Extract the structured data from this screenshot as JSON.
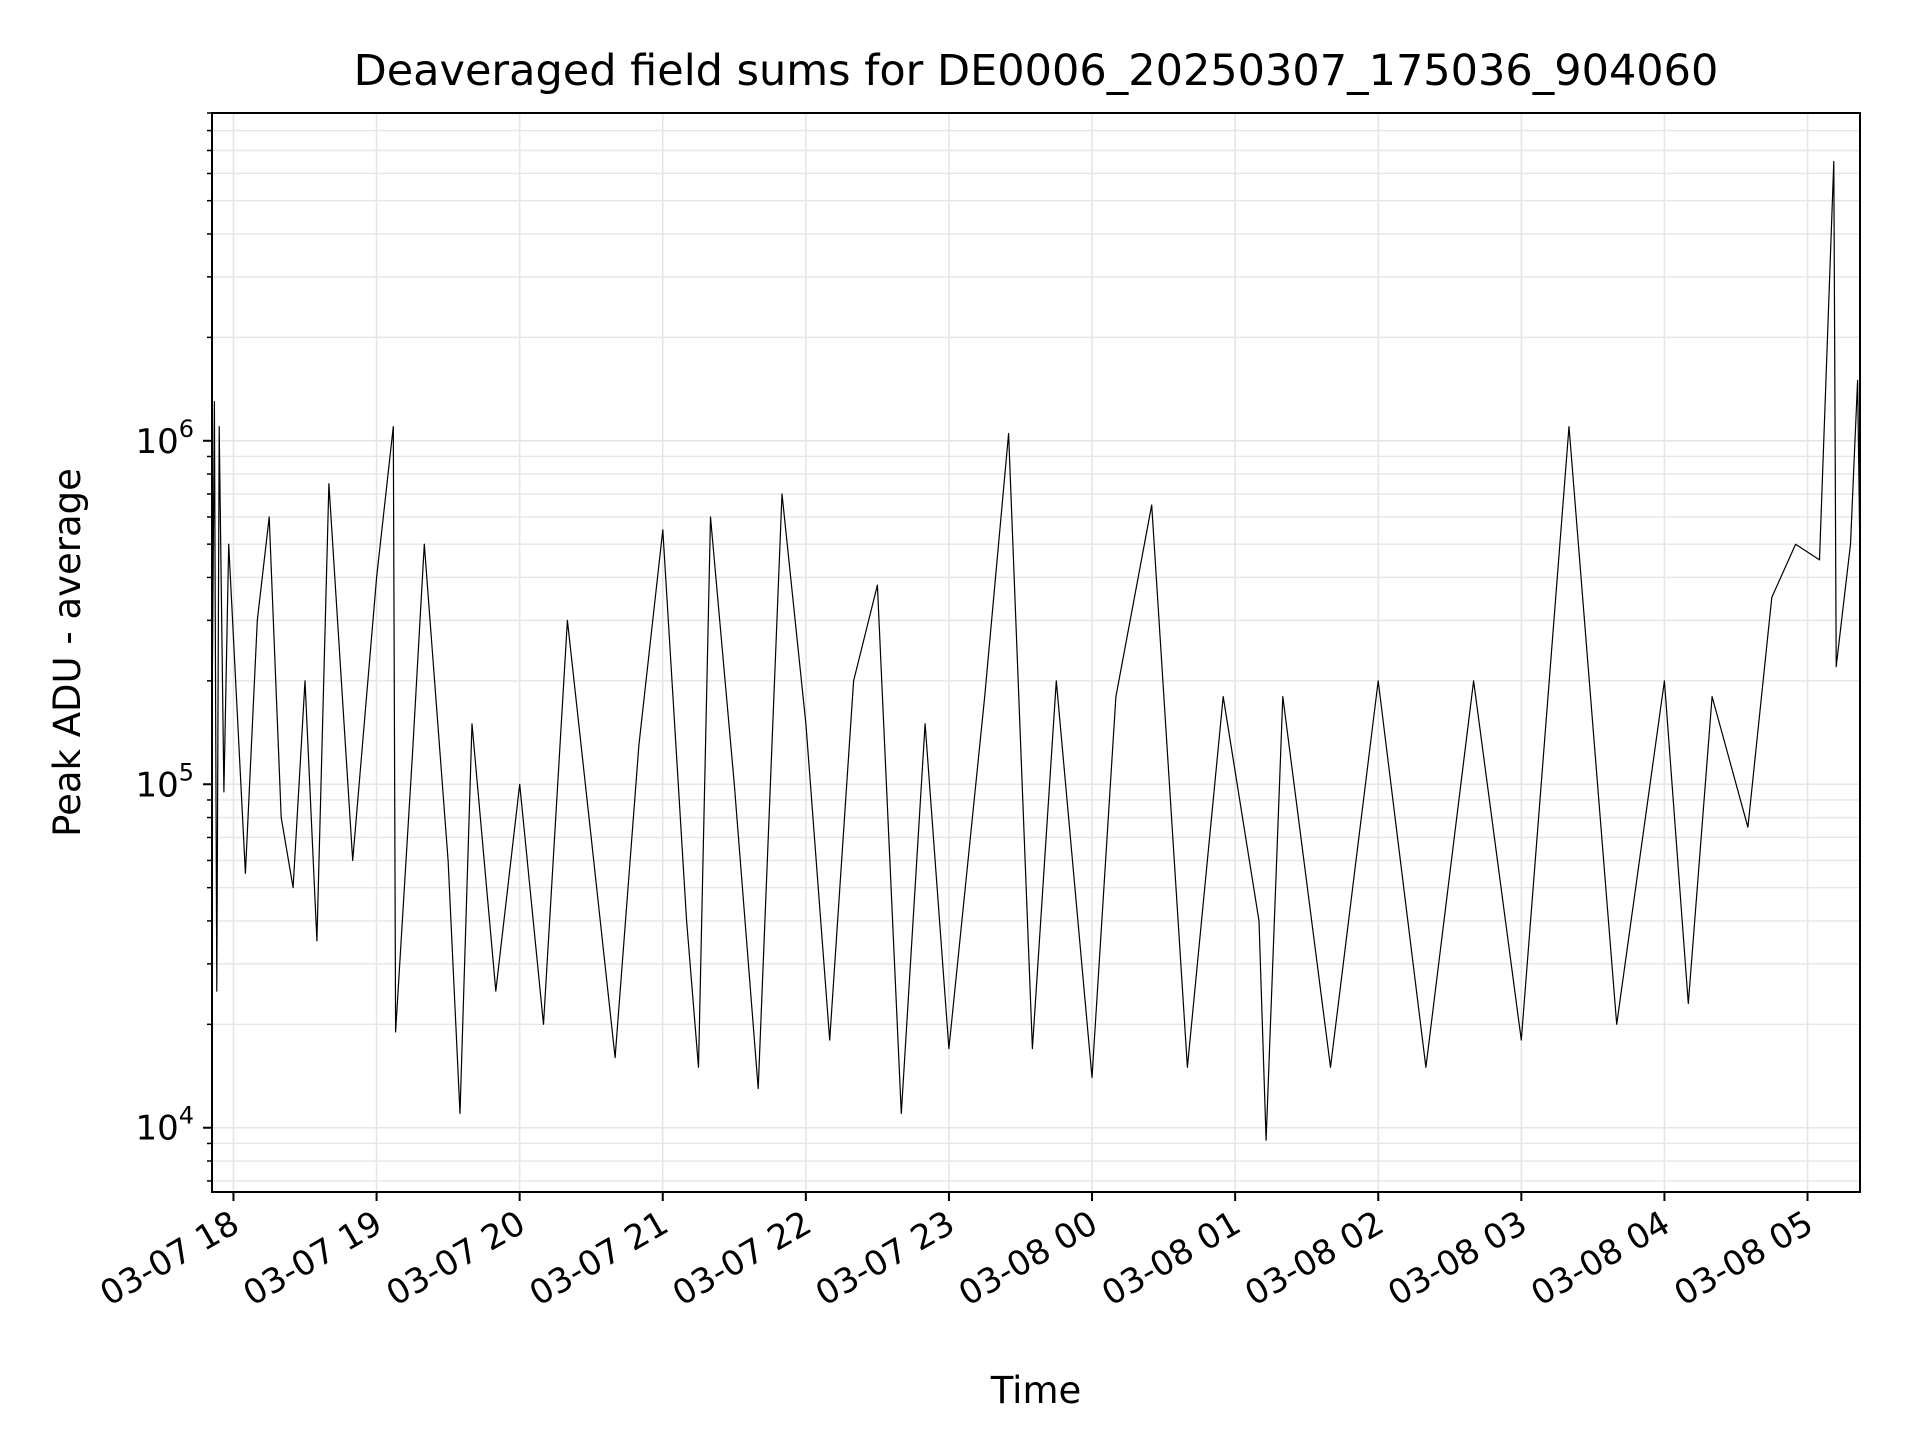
{
  "chart_data": {
    "type": "line",
    "title": "Deaveraged field sums for DE0006_20250307_175036_904060",
    "xlabel": "Time",
    "ylabel": "Peak ADU - average",
    "y_scale": "log",
    "ylim": [
      6500,
      9000000
    ],
    "xlim": [
      "2025-03-07 17:51",
      "2025-03-08 05:22"
    ],
    "grid": true,
    "line_color": "#000000",
    "x_ticks": [
      {
        "value": "2025-03-07 18:00",
        "label": "03-07 18"
      },
      {
        "value": "2025-03-07 19:00",
        "label": "03-07 19"
      },
      {
        "value": "2025-03-07 20:00",
        "label": "03-07 20"
      },
      {
        "value": "2025-03-07 21:00",
        "label": "03-07 21"
      },
      {
        "value": "2025-03-07 22:00",
        "label": "03-07 22"
      },
      {
        "value": "2025-03-07 23:00",
        "label": "03-07 23"
      },
      {
        "value": "2025-03-08 00:00",
        "label": "03-08 00"
      },
      {
        "value": "2025-03-08 01:00",
        "label": "03-08 01"
      },
      {
        "value": "2025-03-08 02:00",
        "label": "03-08 02"
      },
      {
        "value": "2025-03-08 03:00",
        "label": "03-08 03"
      },
      {
        "value": "2025-03-08 04:00",
        "label": "03-08 04"
      },
      {
        "value": "2025-03-08 05:00",
        "label": "03-08 05"
      }
    ],
    "y_ticks": [
      {
        "value": 10000,
        "base": "10",
        "exp": "4"
      },
      {
        "value": 100000,
        "base": "10",
        "exp": "5"
      },
      {
        "value": 1000000,
        "base": "10",
        "exp": "6"
      }
    ],
    "series": [
      {
        "values": [
          [
            "2025-03-07 17:51",
            150000
          ],
          [
            "2025-03-07 17:52",
            1300000
          ],
          [
            "2025-03-07 17:53",
            25000
          ],
          [
            "2025-03-07 17:54",
            1100000
          ],
          [
            "2025-03-07 17:56",
            95000
          ],
          [
            "2025-03-07 17:58",
            500000
          ],
          [
            "2025-03-07 18:05",
            55000
          ],
          [
            "2025-03-07 18:10",
            300000
          ],
          [
            "2025-03-07 18:15",
            600000
          ],
          [
            "2025-03-07 18:20",
            80000
          ],
          [
            "2025-03-07 18:25",
            50000
          ],
          [
            "2025-03-07 18:30",
            200000
          ],
          [
            "2025-03-07 18:35",
            35000
          ],
          [
            "2025-03-07 18:40",
            750000
          ],
          [
            "2025-03-07 18:50",
            60000
          ],
          [
            "2025-03-07 19:00",
            400000
          ],
          [
            "2025-03-07 19:07",
            1100000
          ],
          [
            "2025-03-07 19:08",
            19000
          ],
          [
            "2025-03-07 19:15",
            120000
          ],
          [
            "2025-03-07 19:20",
            500000
          ],
          [
            "2025-03-07 19:30",
            60000
          ],
          [
            "2025-03-07 19:35",
            11000
          ],
          [
            "2025-03-07 19:40",
            150000
          ],
          [
            "2025-03-07 19:50",
            25000
          ],
          [
            "2025-03-07 20:00",
            100000
          ],
          [
            "2025-03-07 20:10",
            20000
          ],
          [
            "2025-03-07 20:20",
            300000
          ],
          [
            "2025-03-07 20:30",
            70000
          ],
          [
            "2025-03-07 20:40",
            16000
          ],
          [
            "2025-03-07 20:50",
            130000
          ],
          [
            "2025-03-07 21:00",
            550000
          ],
          [
            "2025-03-07 21:10",
            40000
          ],
          [
            "2025-03-07 21:15",
            15000
          ],
          [
            "2025-03-07 21:20",
            600000
          ],
          [
            "2025-03-07 21:30",
            100000
          ],
          [
            "2025-03-07 21:40",
            13000
          ],
          [
            "2025-03-07 21:50",
            700000
          ],
          [
            "2025-03-07 22:00",
            150000
          ],
          [
            "2025-03-07 22:10",
            18000
          ],
          [
            "2025-03-07 22:20",
            200000
          ],
          [
            "2025-03-07 22:30",
            380000
          ],
          [
            "2025-03-07 22:40",
            11000
          ],
          [
            "2025-03-07 22:50",
            150000
          ],
          [
            "2025-03-07 23:00",
            17000
          ],
          [
            "2025-03-07 23:15",
            180000
          ],
          [
            "2025-03-07 23:25",
            1050000
          ],
          [
            "2025-03-07 23:35",
            17000
          ],
          [
            "2025-03-07 23:45",
            200000
          ],
          [
            "2025-03-08 00:00",
            14000
          ],
          [
            "2025-03-08 00:10",
            180000
          ],
          [
            "2025-03-08 00:25",
            650000
          ],
          [
            "2025-03-08 00:40",
            15000
          ],
          [
            "2025-03-08 00:55",
            180000
          ],
          [
            "2025-03-08 01:10",
            40000
          ],
          [
            "2025-03-08 01:13",
            9200
          ],
          [
            "2025-03-08 01:20",
            180000
          ],
          [
            "2025-03-08 01:40",
            15000
          ],
          [
            "2025-03-08 02:00",
            200000
          ],
          [
            "2025-03-08 02:20",
            15000
          ],
          [
            "2025-03-08 02:40",
            200000
          ],
          [
            "2025-03-08 03:00",
            18000
          ],
          [
            "2025-03-08 03:20",
            1100000
          ],
          [
            "2025-03-08 03:40",
            20000
          ],
          [
            "2025-03-08 04:00",
            200000
          ],
          [
            "2025-03-08 04:10",
            23000
          ],
          [
            "2025-03-08 04:20",
            180000
          ],
          [
            "2025-03-08 04:35",
            75000
          ],
          [
            "2025-03-08 04:45",
            350000
          ],
          [
            "2025-03-08 04:55",
            500000
          ],
          [
            "2025-03-08 05:05",
            450000
          ],
          [
            "2025-03-08 05:11",
            6500000
          ],
          [
            "2025-03-08 05:12",
            220000
          ],
          [
            "2025-03-08 05:18",
            500000
          ],
          [
            "2025-03-08 05:21",
            1500000
          ],
          [
            "2025-03-08 05:22",
            450000
          ]
        ]
      }
    ]
  }
}
